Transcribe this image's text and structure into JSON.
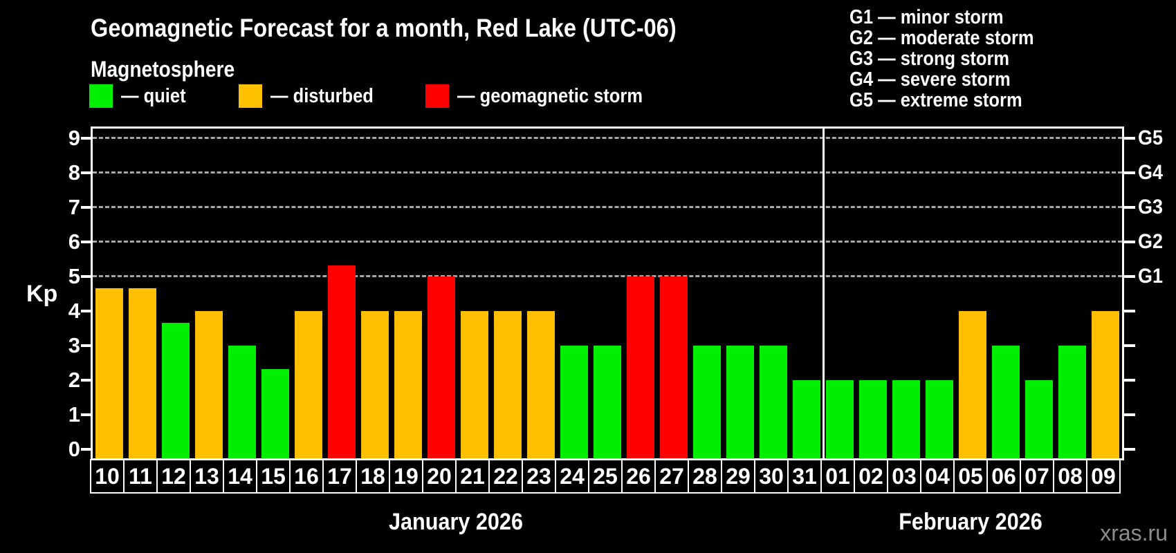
{
  "header": {
    "title": "Geomagnetic Forecast for a month, Red Lake (UTC-06)",
    "subtitle": "Magnetosphere"
  },
  "legend": {
    "items": [
      {
        "label": "— quiet",
        "status": "quiet",
        "color": "#00ee00"
      },
      {
        "label": "— disturbed",
        "status": "disturbed",
        "color": "#ffc000"
      },
      {
        "label": "— geomagnetic storm",
        "status": "storm",
        "color": "#ff0000"
      }
    ]
  },
  "g_legend": {
    "items": [
      "G1 — minor storm",
      "G2 — moderate storm",
      "G3 — strong storm",
      "G4 — severe storm",
      "G5 — extreme storm"
    ]
  },
  "watermark": "xras.ru",
  "chart_data": {
    "type": "bar",
    "title": "Geomagnetic Forecast for a month, Red Lake (UTC-06)",
    "ylabel": "Kp",
    "ylim": [
      0,
      9
    ],
    "y_ticks": [
      0,
      1,
      2,
      3,
      4,
      5,
      6,
      7,
      8,
      9
    ],
    "gridlines_at": [
      5,
      6,
      7,
      8,
      9
    ],
    "right_axis_labels": [
      {
        "kp": 5,
        "label": "G1"
      },
      {
        "kp": 6,
        "label": "G2"
      },
      {
        "kp": 7,
        "label": "G3"
      },
      {
        "kp": 8,
        "label": "G4"
      },
      {
        "kp": 9,
        "label": "G5"
      }
    ],
    "legend_position": "top",
    "grid": true,
    "months": [
      {
        "label": "January 2026",
        "span": 22
      },
      {
        "label": "February 2026",
        "span": 9
      }
    ],
    "categories": [
      "10",
      "11",
      "12",
      "13",
      "14",
      "15",
      "16",
      "17",
      "18",
      "19",
      "20",
      "21",
      "22",
      "23",
      "24",
      "25",
      "26",
      "27",
      "28",
      "29",
      "30",
      "31",
      "01",
      "02",
      "03",
      "04",
      "05",
      "06",
      "07",
      "08",
      "09"
    ],
    "values": [
      4.67,
      4.67,
      3.67,
      4,
      3,
      2.33,
      4,
      5.33,
      4,
      4,
      5,
      4,
      4,
      4,
      3,
      3,
      5,
      5,
      3,
      3,
      3,
      2,
      2,
      2,
      2,
      2,
      4,
      3,
      2,
      3,
      4
    ],
    "statuses": [
      "disturbed",
      "disturbed",
      "quiet",
      "disturbed",
      "quiet",
      "quiet",
      "disturbed",
      "storm",
      "disturbed",
      "disturbed",
      "storm",
      "disturbed",
      "disturbed",
      "disturbed",
      "quiet",
      "quiet",
      "storm",
      "storm",
      "quiet",
      "quiet",
      "quiet",
      "quiet",
      "quiet",
      "quiet",
      "quiet",
      "quiet",
      "disturbed",
      "quiet",
      "quiet",
      "quiet",
      "disturbed"
    ]
  }
}
